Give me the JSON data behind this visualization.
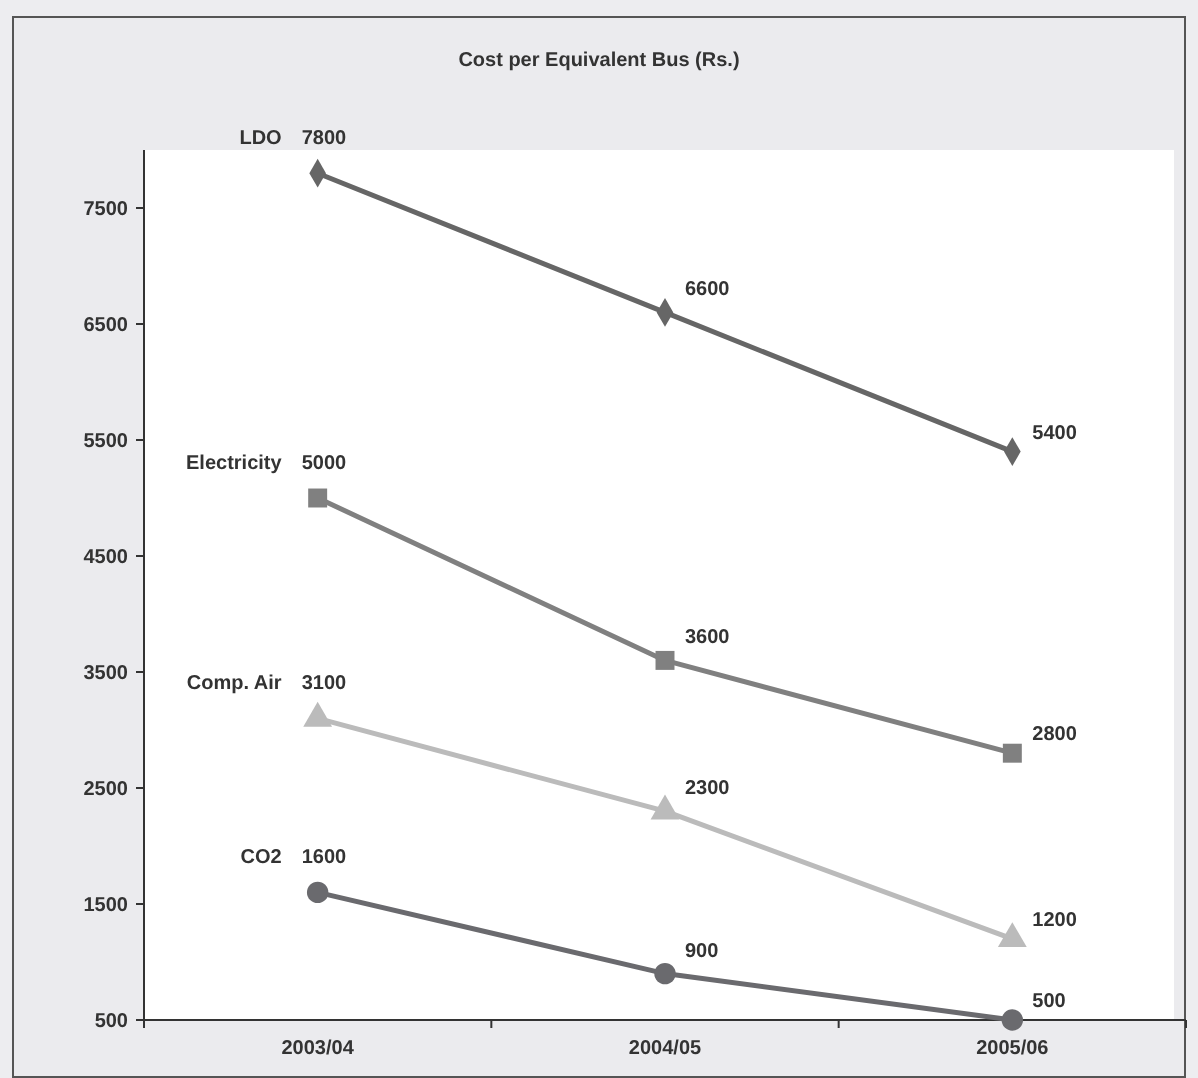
{
  "chart_data": {
    "type": "line",
    "title": "Cost per Equivalent Bus (Rs.)",
    "categories": [
      "2003/04",
      "2004/05",
      "2005/06"
    ],
    "series": [
      {
        "name": "LDO",
        "color": "#666666",
        "marker": "diamond",
        "values": [
          7800,
          6600,
          5400
        ]
      },
      {
        "name": "Electricity",
        "color": "#808080",
        "marker": "square",
        "values": [
          5000,
          3600,
          2800
        ]
      },
      {
        "name": "Comp. Air",
        "color": "#bbbbbb",
        "marker": "triangle",
        "values": [
          3100,
          2300,
          1200
        ]
      },
      {
        "name": "CO2",
        "color": "#6a6a6e",
        "marker": "circle",
        "values": [
          1600,
          900,
          500
        ]
      }
    ],
    "ylim": [
      500,
      8000
    ],
    "yticks": [
      500,
      1500,
      2500,
      3500,
      4500,
      5500,
      6500,
      7500
    ],
    "data_labels": true,
    "grid": false
  }
}
